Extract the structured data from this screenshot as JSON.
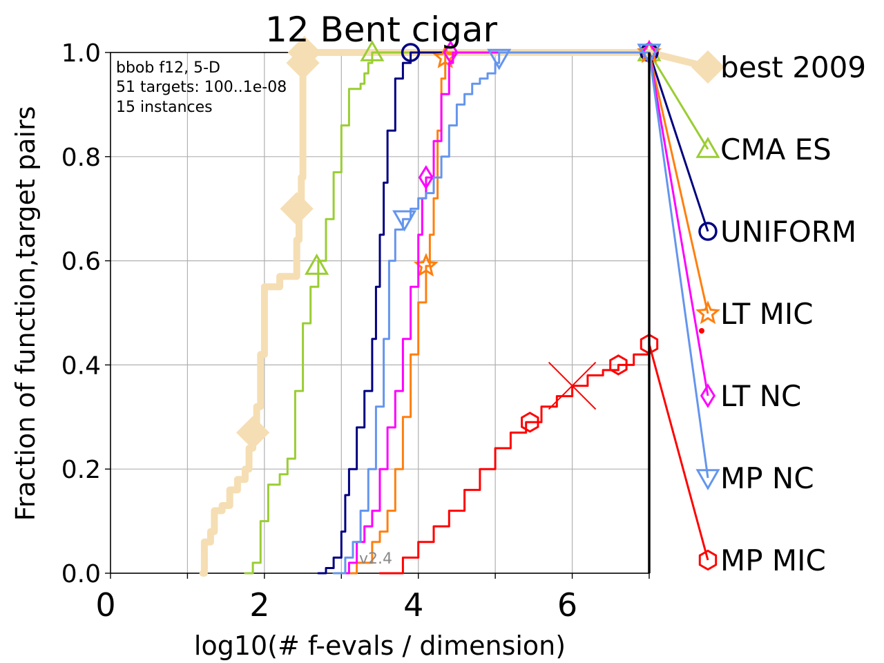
{
  "chart_data": {
    "type": "line",
    "title": "12 Bent cigar",
    "xlabel": "log10(# f-evals / dimension)",
    "ylabel": "Fraction of function,target pairs",
    "xlim": [
      0,
      7
    ],
    "ylim": [
      0,
      1
    ],
    "x_ticks": [
      "0",
      "2",
      "4",
      "6"
    ],
    "y_ticks": [
      "0.0",
      "0.2",
      "0.4",
      "0.6",
      "0.8",
      "1.0"
    ],
    "grid": true,
    "annotation_lines": [
      "bbob f12, 5-D",
      "51 targets: 100..1e-08",
      "15 instances"
    ],
    "version_label": "v2.4",
    "budget_line_x": 7.0,
    "series": [
      {
        "name": "best 2009",
        "color": "#f5deb3",
        "marker": "diamond",
        "points": [
          [
            1.2,
            0
          ],
          [
            1.22,
            0.06
          ],
          [
            1.3,
            0.08
          ],
          [
            1.35,
            0.12
          ],
          [
            1.45,
            0.13
          ],
          [
            1.55,
            0.16
          ],
          [
            1.65,
            0.18
          ],
          [
            1.75,
            0.2
          ],
          [
            1.8,
            0.24
          ],
          [
            1.85,
            0.27
          ],
          [
            1.9,
            0.32
          ],
          [
            1.95,
            0.42
          ],
          [
            2.0,
            0.55
          ],
          [
            2.2,
            0.57
          ],
          [
            2.4,
            0.57
          ],
          [
            2.42,
            0.64
          ],
          [
            2.45,
            0.7
          ],
          [
            2.48,
            0.76
          ],
          [
            2.5,
            0.96
          ],
          [
            2.52,
            1.0
          ],
          [
            3.0,
            1.0
          ],
          [
            7.0,
            1.0
          ]
        ],
        "markers": [
          [
            1.85,
            0.27
          ],
          [
            2.42,
            0.7
          ],
          [
            2.5,
            0.98
          ],
          [
            2.52,
            1.0
          ]
        ],
        "end_value": 0.98
      },
      {
        "name": "CMA ES",
        "color": "#9acd32",
        "marker": "triangle-up",
        "points": [
          [
            1.75,
            0
          ],
          [
            1.85,
            0.02
          ],
          [
            1.95,
            0.1
          ],
          [
            2.05,
            0.17
          ],
          [
            2.2,
            0.19
          ],
          [
            2.3,
            0.22
          ],
          [
            2.4,
            0.35
          ],
          [
            2.5,
            0.48
          ],
          [
            2.6,
            0.55
          ],
          [
            2.7,
            0.6
          ],
          [
            2.8,
            0.68
          ],
          [
            2.9,
            0.77
          ],
          [
            3.0,
            0.86
          ],
          [
            3.1,
            0.93
          ],
          [
            3.25,
            0.94
          ],
          [
            3.3,
            0.96
          ],
          [
            3.35,
            0.98
          ],
          [
            3.4,
            1.0
          ],
          [
            7.0,
            1.0
          ]
        ],
        "markers": [
          [
            2.68,
            0.59
          ],
          [
            3.4,
            1.0
          ],
          [
            7.0,
            1.0
          ]
        ],
        "end_value": 0.82
      },
      {
        "name": "UNIFORM",
        "color": "#000080",
        "marker": "circle",
        "points": [
          [
            2.7,
            0
          ],
          [
            2.8,
            0.01
          ],
          [
            2.9,
            0.03
          ],
          [
            3.0,
            0.08
          ],
          [
            3.05,
            0.15
          ],
          [
            3.1,
            0.2
          ],
          [
            3.2,
            0.28
          ],
          [
            3.3,
            0.35
          ],
          [
            3.4,
            0.45
          ],
          [
            3.45,
            0.55
          ],
          [
            3.5,
            0.65
          ],
          [
            3.55,
            0.75
          ],
          [
            3.6,
            0.85
          ],
          [
            3.7,
            0.95
          ],
          [
            3.8,
            0.98
          ],
          [
            3.9,
            1.0
          ],
          [
            7.0,
            1.0
          ]
        ],
        "markers": [
          [
            3.9,
            1.0
          ],
          [
            7.0,
            1.0
          ]
        ],
        "end_value": 0.66
      },
      {
        "name": "LT MIC",
        "color": "#ff7f0e",
        "marker": "star",
        "points": [
          [
            3.0,
            0
          ],
          [
            3.2,
            0.02
          ],
          [
            3.4,
            0.06
          ],
          [
            3.5,
            0.08
          ],
          [
            3.6,
            0.12
          ],
          [
            3.7,
            0.2
          ],
          [
            3.8,
            0.3
          ],
          [
            3.9,
            0.42
          ],
          [
            4.0,
            0.52
          ],
          [
            4.1,
            0.59
          ],
          [
            4.15,
            0.65
          ],
          [
            4.2,
            0.72
          ],
          [
            4.25,
            0.85
          ],
          [
            4.3,
            0.95
          ],
          [
            4.35,
            1.0
          ],
          [
            7.0,
            1.0
          ]
        ],
        "markers": [
          [
            4.1,
            0.59
          ],
          [
            4.35,
            0.99
          ],
          [
            7.0,
            1.0
          ]
        ],
        "end_value": 0.5
      },
      {
        "name": "LT NC",
        "color": "#ff00ff",
        "marker": "diamond-open",
        "points": [
          [
            2.95,
            0
          ],
          [
            3.1,
            0.02
          ],
          [
            3.2,
            0.06
          ],
          [
            3.3,
            0.09
          ],
          [
            3.4,
            0.12
          ],
          [
            3.5,
            0.2
          ],
          [
            3.6,
            0.28
          ],
          [
            3.7,
            0.35
          ],
          [
            3.8,
            0.45
          ],
          [
            3.9,
            0.55
          ],
          [
            4.0,
            0.65
          ],
          [
            4.05,
            0.72
          ],
          [
            4.1,
            0.76
          ],
          [
            4.2,
            0.83
          ],
          [
            4.3,
            0.92
          ],
          [
            4.4,
            0.98
          ],
          [
            4.45,
            1.0
          ],
          [
            7.0,
            1.0
          ]
        ],
        "markers": [
          [
            4.1,
            0.76
          ],
          [
            4.42,
            1.0
          ],
          [
            7.0,
            1.0
          ]
        ],
        "end_value": 0.34
      },
      {
        "name": "MP NC",
        "color": "#6495ed",
        "marker": "triangle-down",
        "points": [
          [
            2.9,
            0
          ],
          [
            3.05,
            0.03
          ],
          [
            3.15,
            0.06
          ],
          [
            3.25,
            0.12
          ],
          [
            3.35,
            0.2
          ],
          [
            3.45,
            0.32
          ],
          [
            3.55,
            0.45
          ],
          [
            3.62,
            0.6
          ],
          [
            3.7,
            0.66
          ],
          [
            3.8,
            0.68
          ],
          [
            3.9,
            0.7
          ],
          [
            4.0,
            0.72
          ],
          [
            4.1,
            0.73
          ],
          [
            4.2,
            0.76
          ],
          [
            4.3,
            0.8
          ],
          [
            4.4,
            0.86
          ],
          [
            4.5,
            0.9
          ],
          [
            4.6,
            0.92
          ],
          [
            4.7,
            0.94
          ],
          [
            4.8,
            0.95
          ],
          [
            4.9,
            0.96
          ],
          [
            5.0,
            0.98
          ],
          [
            5.05,
            1.0
          ],
          [
            7.0,
            1.0
          ]
        ],
        "markers": [
          [
            3.82,
            0.68
          ],
          [
            5.05,
            0.99
          ],
          [
            7.0,
            1.0
          ]
        ],
        "end_value": 0.18
      },
      {
        "name": "MP MIC",
        "color": "#ff0000",
        "marker": "hexagon",
        "points": [
          [
            3.5,
            0
          ],
          [
            3.8,
            0.03
          ],
          [
            4.0,
            0.06
          ],
          [
            4.2,
            0.09
          ],
          [
            4.4,
            0.12
          ],
          [
            4.6,
            0.16
          ],
          [
            4.8,
            0.2
          ],
          [
            5.0,
            0.24
          ],
          [
            5.2,
            0.27
          ],
          [
            5.4,
            0.29
          ],
          [
            5.6,
            0.32
          ],
          [
            5.8,
            0.34
          ],
          [
            6.0,
            0.36
          ],
          [
            6.2,
            0.38
          ],
          [
            6.4,
            0.39
          ],
          [
            6.6,
            0.4
          ],
          [
            6.8,
            0.42
          ],
          [
            7.0,
            0.44
          ]
        ],
        "markers": [
          [
            5.45,
            0.29
          ],
          [
            6.6,
            0.4
          ],
          [
            7.0,
            0.44
          ]
        ],
        "end_value": 0.02
      }
    ]
  }
}
